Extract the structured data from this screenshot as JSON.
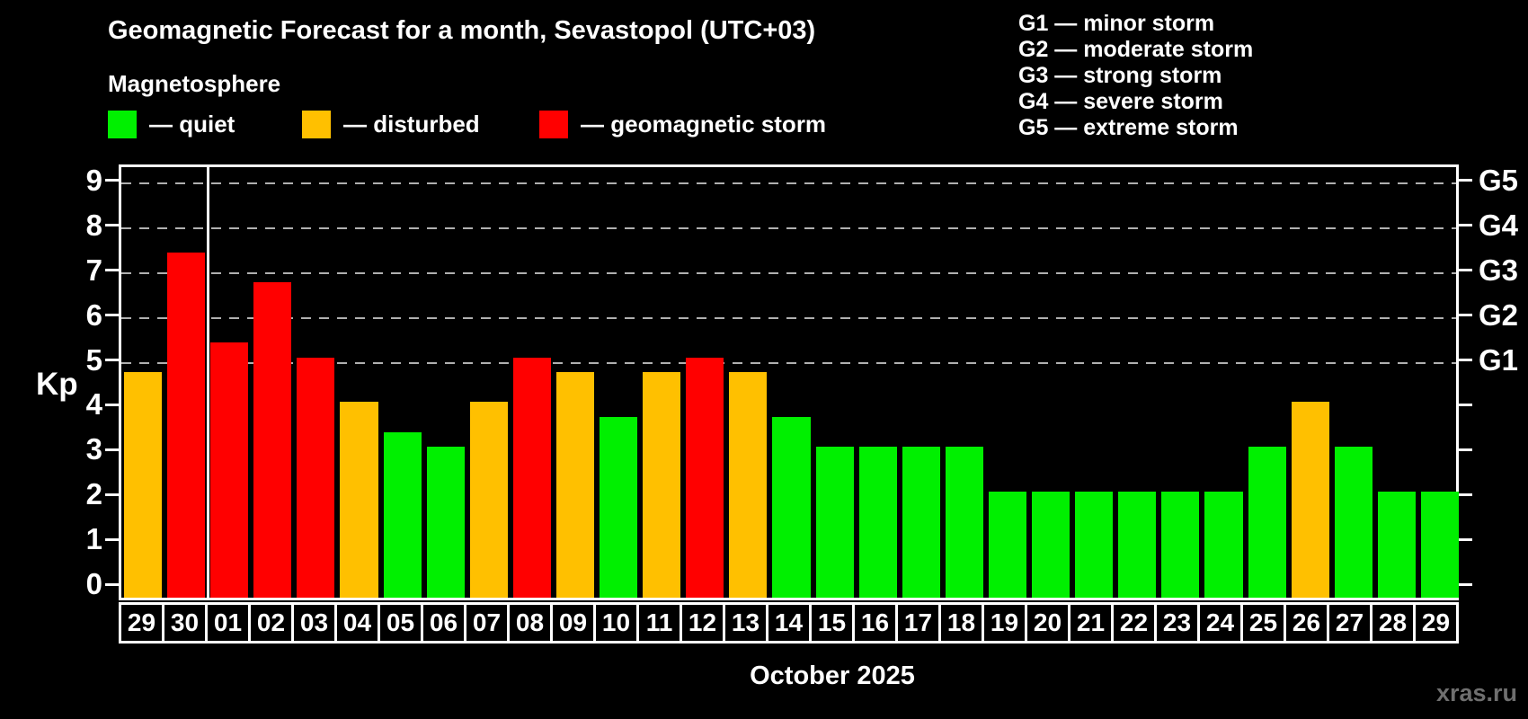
{
  "title": "Geomagnetic Forecast for a month, Sevastopol (UTC+03)",
  "subtitle": "Magnetosphere",
  "legend": {
    "items": [
      {
        "label": "— quiet",
        "status": "quiet"
      },
      {
        "label": "— disturbed",
        "status": "disturbed"
      },
      {
        "label": "— geomagnetic storm",
        "status": "storm"
      }
    ]
  },
  "g_scale": {
    "items": [
      "G1 — minor storm",
      "G2 — moderate storm",
      "G3 — strong storm",
      "G4 — severe storm",
      "G5 — extreme storm"
    ]
  },
  "colors": {
    "quiet": "#00f000",
    "disturbed": "#ffc000",
    "storm": "#ff0000",
    "grid": "#b0b0b0",
    "axis": "#ffffff",
    "watermark": "#6f6f6f"
  },
  "axis": {
    "left_label": "Kp",
    "y_ticks": [
      0,
      1,
      2,
      3,
      4,
      5,
      6,
      7,
      8,
      9
    ],
    "g_labels": [
      {
        "kp": 5,
        "label": "G1"
      },
      {
        "kp": 6,
        "label": "G2"
      },
      {
        "kp": 7,
        "label": "G3"
      },
      {
        "kp": 8,
        "label": "G4"
      },
      {
        "kp": 9,
        "label": "G5"
      }
    ]
  },
  "x_axis_label": "October 2025",
  "watermark": "xras.ru",
  "chart_data": {
    "type": "bar",
    "title": "Geomagnetic Forecast for a month, Sevastopol (UTC+03)",
    "xlabel": "October 2025",
    "ylabel": "Kp",
    "ylim": [
      0,
      9
    ],
    "grid": "dashed horizontal at Kp 5-9 (G1-G5 levels)",
    "legend_position": "top-left",
    "month_separator_before_index": 2,
    "categories": [
      "29",
      "30",
      "01",
      "02",
      "03",
      "04",
      "05",
      "06",
      "07",
      "08",
      "09",
      "10",
      "11",
      "12",
      "13",
      "14",
      "15",
      "16",
      "17",
      "18",
      "19",
      "20",
      "21",
      "22",
      "23",
      "24",
      "25",
      "26",
      "27",
      "28",
      "29"
    ],
    "values": [
      4.67,
      7.33,
      5.33,
      6.67,
      5.0,
      4.0,
      3.33,
      3.0,
      4.0,
      5.0,
      4.67,
      3.67,
      4.67,
      5.0,
      4.67,
      3.67,
      3.0,
      3.0,
      3.0,
      3.0,
      2.0,
      2.0,
      2.0,
      2.0,
      2.0,
      2.0,
      3.0,
      4.0,
      3.0,
      2.0,
      2.0
    ],
    "statuses": [
      "disturbed",
      "storm",
      "storm",
      "storm",
      "storm",
      "disturbed",
      "quiet",
      "quiet",
      "disturbed",
      "storm",
      "disturbed",
      "quiet",
      "disturbed",
      "storm",
      "disturbed",
      "quiet",
      "quiet",
      "quiet",
      "quiet",
      "quiet",
      "quiet",
      "quiet",
      "quiet",
      "quiet",
      "quiet",
      "quiet",
      "quiet",
      "disturbed",
      "quiet",
      "quiet",
      "quiet"
    ]
  }
}
